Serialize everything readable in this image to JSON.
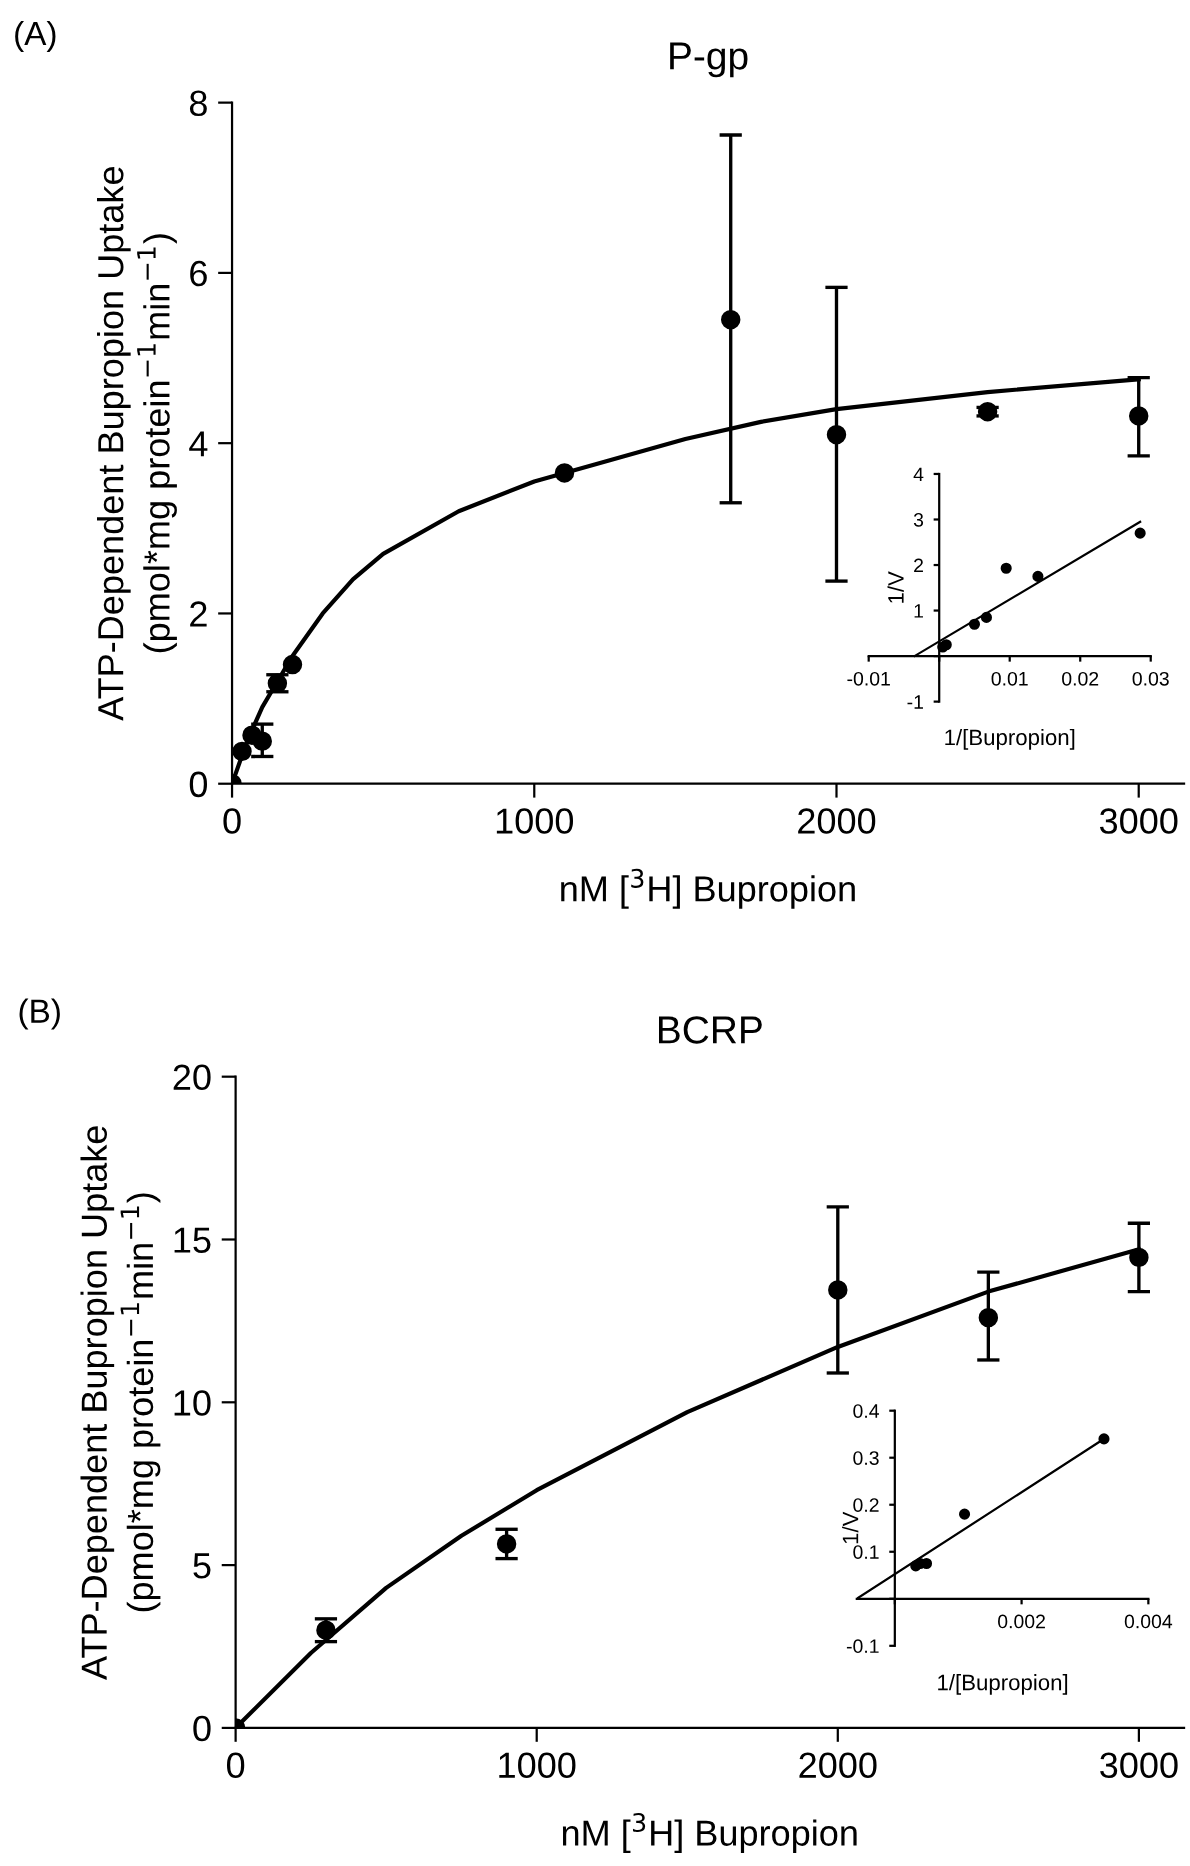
{
  "chart_data": [
    {
      "type": "scatter",
      "title": "P-gp",
      "annotations": [
        "(A)"
      ],
      "xlabel": "nM [$^{3}$H] Bupropion",
      "ylabel": "ATP-Dependent Bupropion Uptake\n(pmol*mg protein$^{−1}$min$^{−1}$)",
      "xlim": [
        0,
        3150
      ],
      "ylim": [
        0,
        8
      ],
      "xticks": [
        0,
        1000,
        2000,
        3000
      ],
      "yticks": [
        0,
        2,
        4,
        6,
        8
      ],
      "grid": false,
      "legend": false,
      "marker": "circle",
      "series": [
        {
          "color": "#000000",
          "x": [
            0,
            33,
            66,
            100,
            150,
            200,
            1100,
            1650,
            2000,
            2500,
            3000
          ],
          "values": [
            0,
            0.38,
            0.57,
            0.5,
            1.18,
            1.4,
            3.65,
            5.45,
            4.1,
            4.37,
            4.32
          ],
          "errors": [
            null,
            null,
            null,
            [
              0.32,
              0.7
            ],
            [
              1.08,
              1.28
            ],
            null,
            null,
            [
              3.3,
              7.62
            ],
            [
              2.38,
              5.83
            ],
            [
              4.32,
              4.42
            ],
            [
              3.85,
              4.77
            ]
          ]
        },
        {
          "type": "line",
          "color": "#000000",
          "line_style": "solid",
          "marker": "none",
          "x": [
            0,
            50,
            100,
            150,
            200,
            300,
            400,
            500,
            750,
            1000,
            1250,
            1500,
            1750,
            2000,
            2500,
            3000
          ],
          "values": [
            0,
            0.5,
            0.9,
            1.2,
            1.5,
            2.0,
            2.4,
            2.7,
            3.2,
            3.55,
            3.8,
            4.05,
            4.25,
            4.4,
            4.6,
            4.75
          ]
        }
      ]
    },
    {
      "type": "scatter",
      "xlabel": "1/[Bupropion]",
      "ylabel": "1/V",
      "xlim": [
        -0.01,
        0.03
      ],
      "ylim": [
        -1,
        4
      ],
      "xticks": [
        -0.01,
        {
          "value": 0,
          "label": null
        },
        0.01,
        0.02,
        0.03
      ],
      "yticks": [
        -1,
        {
          "value": 0,
          "label": null
        },
        1,
        2,
        3,
        4
      ],
      "grid": false,
      "legend": false,
      "marker": "circle",
      "series": [
        {
          "color": "#000000",
          "x": [
            0.0005,
            0.001,
            0.005,
            0.0067,
            0.0095,
            0.014,
            0.0285
          ],
          "values": [
            0.2,
            0.25,
            0.7,
            0.85,
            1.93,
            1.75,
            2.7
          ]
        },
        {
          "type": "line",
          "color": "#000000",
          "line_style": "solid",
          "marker": "none",
          "x": [
            -0.0035,
            0.0285
          ],
          "values": [
            0,
            2.95
          ]
        }
      ]
    },
    {
      "type": "scatter",
      "title": "BCRP",
      "annotations": [
        "(B)"
      ],
      "xlabel": "nM [$^{3}$H] Bupropion",
      "ylabel": "ATP-Dependent Bupropion Uptake\n(pmol*mg protein$^{−1}$min$^{−1}$)",
      "xlim": [
        0,
        3150
      ],
      "ylim": [
        0,
        20
      ],
      "xticks": [
        0,
        1000,
        2000,
        3000
      ],
      "yticks": [
        0,
        5,
        10,
        15,
        20
      ],
      "grid": false,
      "legend": false,
      "marker": "circle",
      "series": [
        {
          "color": "#000000",
          "x": [
            0,
            300,
            900,
            2000,
            2500,
            3000
          ],
          "values": [
            0,
            3.0,
            5.65,
            13.45,
            12.6,
            14.45
          ],
          "errors": [
            null,
            [
              2.65,
              3.35
            ],
            [
              5.2,
              6.1
            ],
            [
              10.9,
              16.0
            ],
            [
              11.3,
              14.0
            ],
            [
              13.4,
              15.5
            ]
          ]
        },
        {
          "type": "line",
          "color": "#000000",
          "line_style": "solid",
          "marker": "none",
          "x": [
            0,
            250,
            500,
            750,
            1000,
            1500,
            2000,
            2500,
            3000
          ],
          "values": [
            0,
            2.3,
            4.3,
            5.9,
            7.3,
            9.7,
            11.7,
            13.4,
            14.7
          ]
        }
      ]
    },
    {
      "type": "scatter",
      "xlabel": "1/[Bupropion]",
      "ylabel": "1/V",
      "xlim": [
        -0.0006,
        0.004
      ],
      "ylim": [
        -0.1,
        0.4
      ],
      "xticks": [
        {
          "value": 0,
          "label": null
        },
        0.002,
        0.004
      ],
      "yticks": [
        -0.1,
        {
          "value": 0,
          "label": null
        },
        0.1,
        0.2,
        0.3,
        0.4
      ],
      "grid": false,
      "legend": false,
      "marker": "circle",
      "series": [
        {
          "color": "#000000",
          "x": [
            0.00033,
            0.0004,
            0.0005,
            0.0011,
            0.0033
          ],
          "values": [
            0.07,
            0.075,
            0.075,
            0.18,
            0.34
          ]
        },
        {
          "type": "line",
          "color": "#000000",
          "line_style": "solid",
          "marker": "none",
          "x": [
            -0.0006,
            0.0033
          ],
          "values": [
            0,
            0.34
          ]
        }
      ]
    }
  ]
}
